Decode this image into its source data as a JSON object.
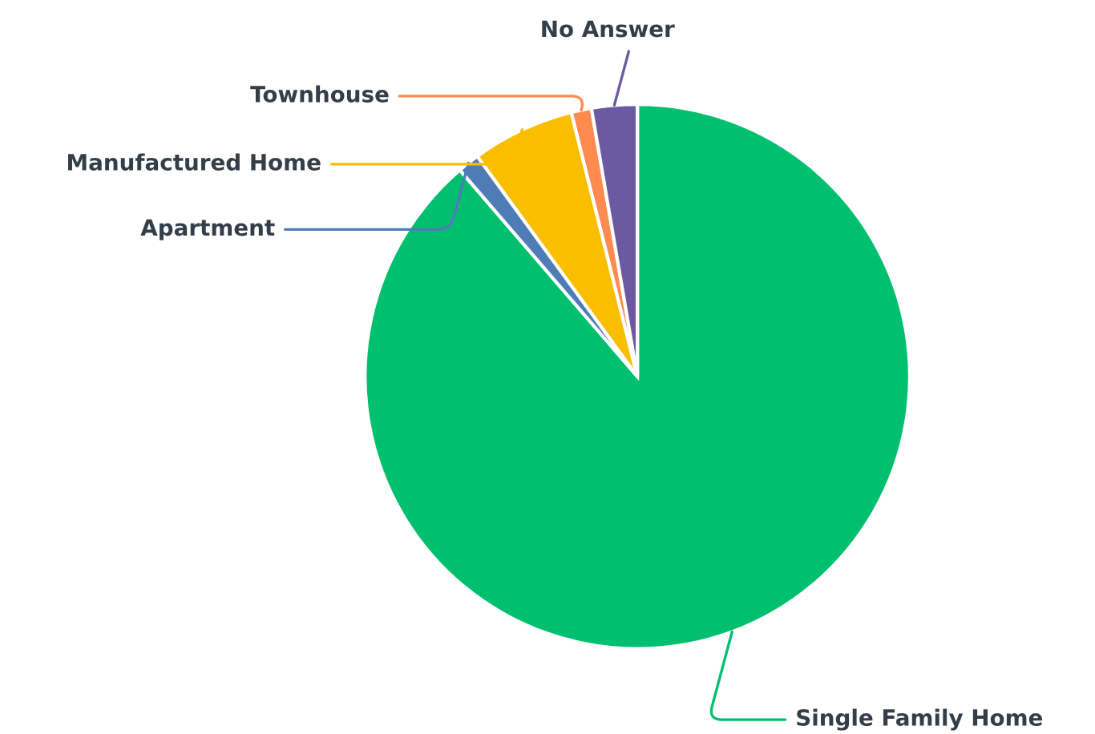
{
  "chart_data": {
    "type": "pie",
    "categories": [
      "Single Family Home",
      "Apartment",
      "Manufactured Home",
      "Townhouse",
      "No Answer"
    ],
    "values": [
      88.7,
      1.3,
      6.1,
      1.2,
      2.7
    ],
    "colors": [
      "#00bf6f",
      "#507cb6",
      "#f9be00",
      "#ff8b4f",
      "#6b5aa2"
    ]
  }
}
